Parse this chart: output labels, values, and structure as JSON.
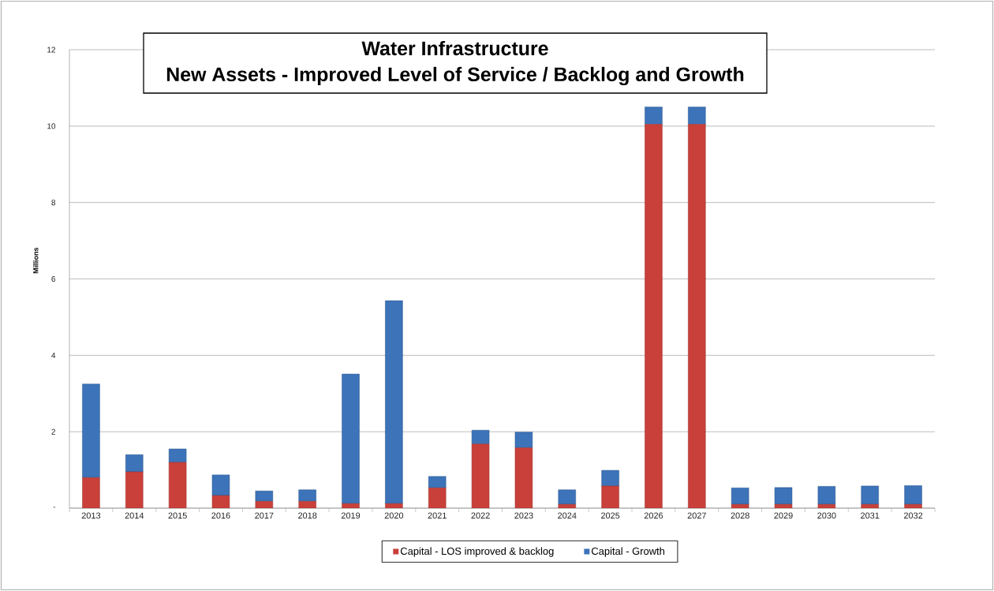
{
  "chart_data": {
    "type": "bar",
    "stacked": true,
    "title": "Water Infrastructure",
    "subtitle": "New Assets - Improved Level of Service / Backlog and Growth",
    "ylabel": "Millions",
    "categories": [
      "2013",
      "2014",
      "2015",
      "2016",
      "2017",
      "2018",
      "2019",
      "2020",
      "2021",
      "2022",
      "2023",
      "2024",
      "2025",
      "2026",
      "2027",
      "2028",
      "2029",
      "2030",
      "2031",
      "2032"
    ],
    "series": [
      {
        "name": "Capital - LOS improved & backlog",
        "color": "#c9403a",
        "values": [
          0.8,
          0.95,
          1.2,
          0.33,
          0.18,
          0.18,
          0.12,
          0.12,
          0.53,
          1.68,
          1.58,
          0.1,
          0.58,
          10.05,
          10.05,
          0.1,
          0.1,
          0.1,
          0.1,
          0.1
        ]
      },
      {
        "name": "Capital - Growth",
        "color": "#3c73b9",
        "values": [
          2.45,
          0.45,
          0.35,
          0.54,
          0.27,
          0.3,
          3.39,
          5.31,
          0.3,
          0.36,
          0.41,
          0.38,
          0.41,
          0.45,
          0.45,
          0.43,
          0.44,
          0.47,
          0.48,
          0.49
        ]
      }
    ],
    "ylim": [
      0,
      12
    ],
    "yticks": [
      {
        "value": 0,
        "label": "-"
      },
      2,
      4,
      6,
      8,
      10,
      12
    ],
    "grid": "y",
    "legend": "bottom"
  }
}
